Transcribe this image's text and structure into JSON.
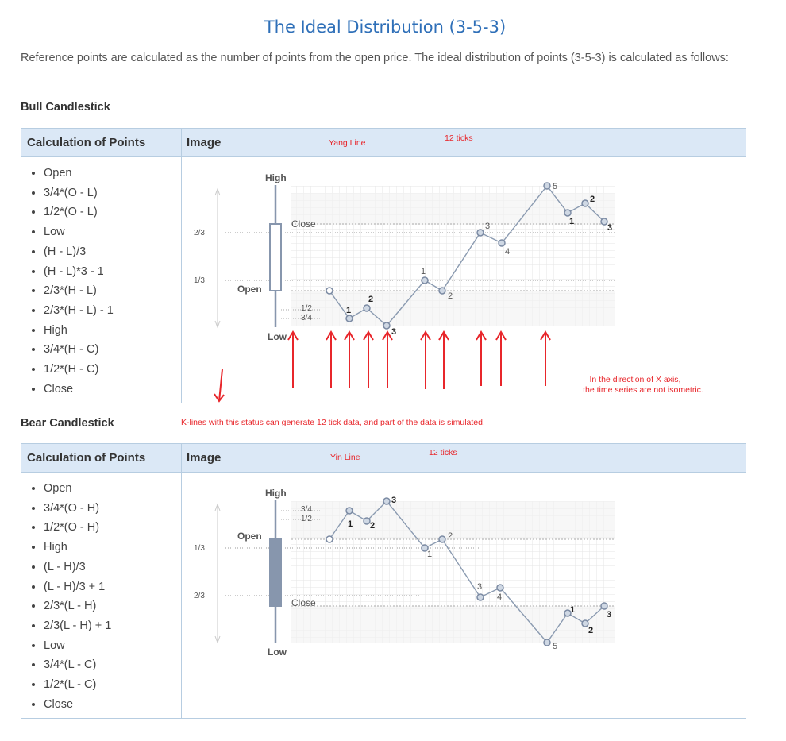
{
  "page": {
    "title": "The Ideal Distribution (3-5-3)",
    "intro": "Reference points are calculated as the number of points from the open price. The ideal distribution of points (3-5-3) is calculated as follows:"
  },
  "bull": {
    "section_title": "Bull Candlestick",
    "col1": "Calculation of Points",
    "col2": "Image",
    "items": [
      "Open",
      "3/4*(O - L)",
      "1/2*(O - L)",
      "Low",
      "(H - L)/3",
      "(H - L)*3 - 1",
      "2/3*(H - L)",
      "2/3*(H - L) - 1",
      "High",
      "3/4*(H - C)",
      "1/2*(H - C)",
      "Close"
    ],
    "diagram": {
      "high": "High",
      "low": "Low",
      "open": "Open",
      "close": "Close",
      "frac_23": "2/3",
      "frac_13": "1/3",
      "frac_12": "1/2",
      "frac_34": "3/4",
      "point_labels": [
        "1",
        "2",
        "3",
        "1",
        "2",
        "3",
        "4",
        "5",
        "1",
        "2",
        "3"
      ]
    },
    "notes": {
      "line_type": "Yang Line",
      "ticks": "12 ticks",
      "axis_note_1": "In the direction of X axis,",
      "axis_note_2": "the time series are not isometric."
    }
  },
  "middle_note": "K-lines with this status can generate 12 tick data, and part of the data is simulated.",
  "bear": {
    "section_title": "Bear Candlestick",
    "col1": "Calculation of Points",
    "col2": "Image",
    "items": [
      "Open",
      "3/4*(O - H)",
      "1/2*(O - H)",
      "High",
      "(L - H)/3",
      "(L - H)/3 + 1",
      "2/3*(L - H)",
      "2/3(L - H) + 1",
      "Low",
      "3/4*(L - C)",
      "1/2*(L - C)",
      "Close"
    ],
    "diagram": {
      "high": "High",
      "low": "Low",
      "open": "Open",
      "close": "Close",
      "frac_13": "1/3",
      "frac_23": "2/3",
      "frac_34": "3/4",
      "frac_12": "1/2",
      "point_labels": [
        "1",
        "2",
        "3",
        "1",
        "2",
        "3",
        "4",
        "5",
        "1",
        "2",
        "3"
      ]
    },
    "notes": {
      "line_type": "Yin Line",
      "ticks": "12 ticks"
    }
  },
  "colors": {
    "title": "#2e6fb8",
    "header_bg": "#dbe8f6",
    "annotation": "#e8262b",
    "line": "#8a9ab0"
  }
}
